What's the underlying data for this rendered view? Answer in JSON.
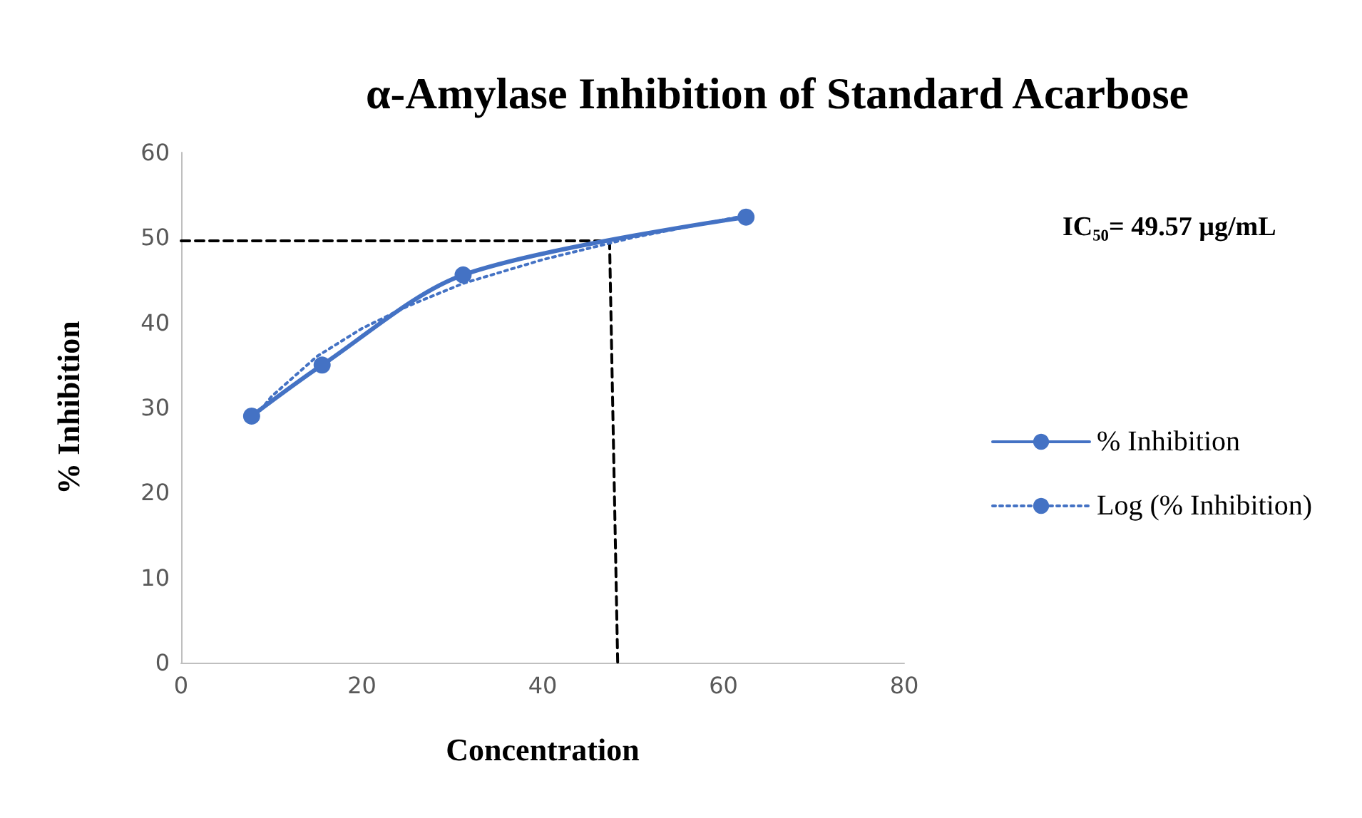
{
  "chart_data": {
    "type": "line",
    "title": "α-Amylase Inhibition of Standard Acarbose",
    "xlabel": "Concentration",
    "ylabel": "% Inhibition",
    "annotations": [
      "IC₅₀= 49.57 µg/mL"
    ],
    "xlim": [
      0,
      80
    ],
    "xticks": [
      0,
      20,
      40,
      60,
      80
    ],
    "ylim": [
      0,
      60
    ],
    "yticks": [
      0,
      10,
      20,
      30,
      40,
      50,
      60
    ],
    "grid": false,
    "legend": "right",
    "series": [
      {
        "name": "% Inhibition",
        "color": "#4472c4",
        "x": [
          7.8,
          15.6,
          31.2,
          62.5
        ],
        "values": [
          29,
          35,
          45.6,
          52.4
        ],
        "marker": "circle",
        "line_style": "solid"
      },
      {
        "name": "Log (% Inhibition)",
        "type": "line",
        "color": "#4472c4",
        "x": [
          7.8,
          10,
          15,
          20,
          25,
          31.2,
          40,
          50,
          62.5
        ],
        "values": [
          28.4,
          31.3,
          36.0,
          39.3,
          41.9,
          44.6,
          47.4,
          50.0,
          52.6
        ],
        "marker": "none",
        "line_style": "dotted"
      },
      {
        "type": "line",
        "color": "#000000",
        "x": [
          0,
          47.4,
          48.3
        ],
        "values": [
          49.6,
          49.6,
          0
        ],
        "marker": "none",
        "line_style": "dashed"
      }
    ]
  }
}
